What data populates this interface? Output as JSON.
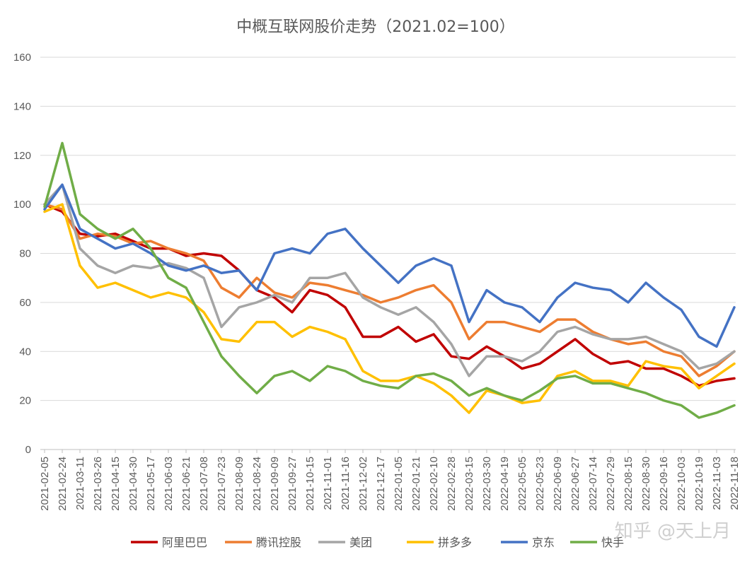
{
  "chart_data": {
    "type": "line",
    "title": "中概互联网股价走势（2021.02=100）",
    "xlabel": "",
    "ylabel": "",
    "ylim": [
      0,
      160
    ],
    "yticks": [
      0,
      20,
      40,
      60,
      80,
      100,
      120,
      140,
      160
    ],
    "grid": true,
    "legend": "bottom",
    "categories": [
      "2021-02-05",
      "2021-02-24",
      "2021-03-11",
      "2021-03-26",
      "2021-04-15",
      "2021-04-30",
      "2021-05-17",
      "2021-06-03",
      "2021-06-21",
      "2021-07-08",
      "2021-07-23",
      "2021-08-09",
      "2021-08-24",
      "2021-09-09",
      "2021-09-27",
      "2021-10-15",
      "2021-11-01",
      "2021-11-16",
      "2021-12-02",
      "2021-12-17",
      "2022-01-05",
      "2022-01-21",
      "2022-02-10",
      "2022-02-28",
      "2022-03-15",
      "2022-03-30",
      "2022-04-19",
      "2022-05-05",
      "2022-05-23",
      "2022-06-09",
      "2022-06-27",
      "2022-07-14",
      "2022-07-29",
      "2022-08-15",
      "2022-08-30",
      "2022-09-16",
      "2022-10-03",
      "2022-10-19",
      "2022-11-03",
      "2022-11-18"
    ],
    "series": [
      {
        "name": "阿里巴巴",
        "color": "#C00000",
        "values": [
          100,
          97,
          88,
          87,
          88,
          85,
          82,
          82,
          79,
          80,
          79,
          73,
          65,
          62,
          56,
          65,
          63,
          58,
          46,
          46,
          50,
          44,
          47,
          38,
          37,
          42,
          38,
          33,
          35,
          40,
          45,
          39,
          35,
          36,
          33,
          33,
          30,
          26,
          28,
          29
        ]
      },
      {
        "name": "腾讯控股",
        "color": "#ED7D31",
        "values": [
          100,
          98,
          86,
          88,
          87,
          84,
          85,
          82,
          80,
          77,
          66,
          62,
          70,
          64,
          62,
          68,
          67,
          65,
          63,
          60,
          62,
          65,
          67,
          60,
          45,
          52,
          52,
          50,
          48,
          53,
          53,
          48,
          45,
          43,
          44,
          40,
          38,
          30,
          34,
          40
        ]
      },
      {
        "name": "美团",
        "color": "#A5A5A5",
        "values": [
          100,
          108,
          82,
          75,
          72,
          75,
          74,
          76,
          74,
          70,
          50,
          58,
          60,
          63,
          60,
          70,
          70,
          72,
          62,
          58,
          55,
          58,
          52,
          43,
          30,
          38,
          38,
          36,
          40,
          48,
          50,
          47,
          45,
          45,
          46,
          43,
          40,
          33,
          35,
          40
        ]
      },
      {
        "name": "拼多多",
        "color": "#FFC000",
        "values": [
          97,
          100,
          75,
          66,
          68,
          65,
          62,
          64,
          62,
          56,
          45,
          44,
          52,
          52,
          46,
          50,
          48,
          45,
          32,
          28,
          28,
          30,
          27,
          22,
          15,
          24,
          22,
          19,
          20,
          30,
          32,
          28,
          28,
          26,
          36,
          34,
          33,
          25,
          30,
          35
        ]
      },
      {
        "name": "京东",
        "color": "#4472C4",
        "values": [
          98,
          108,
          90,
          86,
          82,
          84,
          80,
          75,
          73,
          75,
          72,
          73,
          65,
          80,
          82,
          80,
          88,
          90,
          82,
          75,
          68,
          75,
          78,
          75,
          52,
          65,
          60,
          58,
          52,
          62,
          68,
          66,
          65,
          60,
          68,
          62,
          57,
          46,
          42,
          58
        ]
      },
      {
        "name": "快手",
        "color": "#70AD47",
        "values": [
          99,
          125,
          96,
          90,
          86,
          90,
          82,
          70,
          66,
          52,
          38,
          30,
          23,
          30,
          32,
          28,
          34,
          32,
          28,
          26,
          25,
          30,
          31,
          28,
          22,
          25,
          22,
          20,
          24,
          29,
          30,
          27,
          27,
          25,
          23,
          20,
          18,
          13,
          15,
          18
        ]
      }
    ]
  },
  "watermark": "知乎 @天上月"
}
